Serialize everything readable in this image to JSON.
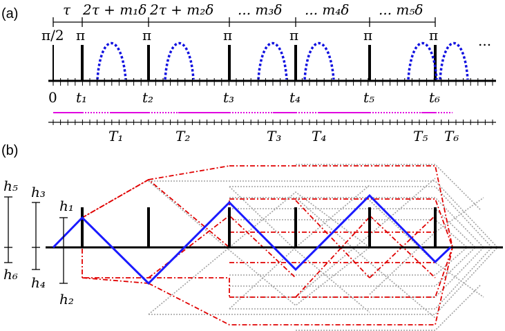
{
  "panel_a": {
    "panel_label": "(a)",
    "intervals": [
      {
        "id": "tau",
        "label": "τ"
      },
      {
        "id": "i1",
        "label": "2τ + m₁δ"
      },
      {
        "id": "i2",
        "label": "2τ + m₂δ"
      },
      {
        "id": "i3",
        "label": "... m₃δ"
      },
      {
        "id": "i4",
        "label": "... m₄δ"
      },
      {
        "id": "i5",
        "label": "... m₅δ"
      }
    ],
    "pulse_labels": [
      "π/2",
      "π",
      "π",
      "π",
      "π",
      "π",
      "π"
    ],
    "continuation": "...",
    "time_labels": [
      "0",
      "t₁",
      "t₂",
      "t₃",
      "t₄",
      "t₅",
      "t₆"
    ],
    "period_labels": [
      "T₁",
      "T₂",
      "T₃",
      "T₄",
      "T₅",
      "T₆"
    ],
    "colors": {
      "pulse": "#000000",
      "echo": "#1010e0",
      "window": "#e000e0"
    }
  },
  "panel_b": {
    "panel_label": "(b)",
    "height_labels": [
      "h₁",
      "h₂",
      "h₃",
      "h₄",
      "h₅",
      "h₆"
    ],
    "colors": {
      "main_path": "#1a1aff",
      "alt_paths": "#e00000",
      "other_paths": "#a0a0a0",
      "pulse": "#000000"
    }
  }
}
